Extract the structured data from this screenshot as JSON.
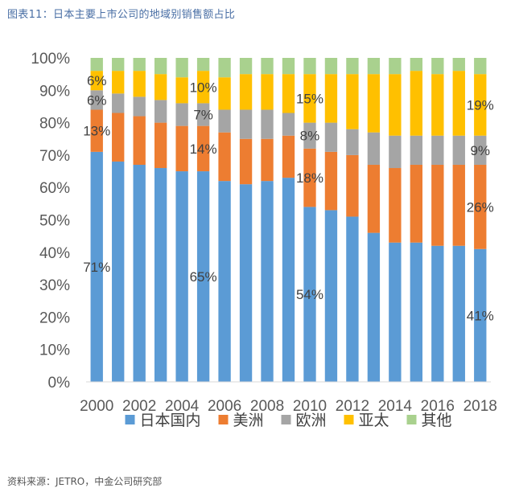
{
  "figure": {
    "title": "图表11：日本主要上市公司的地域别销售额占比",
    "source": "资料来源：JETRO，中金公司研究部"
  },
  "chart_data": {
    "type": "bar",
    "stacked": true,
    "percent": true,
    "categories": [
      "2000",
      "2001",
      "2002",
      "2003",
      "2004",
      "2005",
      "2006",
      "2007",
      "2008",
      "2009",
      "2010",
      "2011",
      "2012",
      "2013",
      "2014",
      "2015",
      "2016",
      "2017",
      "2018"
    ],
    "x_tick_labels": [
      "2000",
      "2002",
      "2004",
      "2006",
      "2008",
      "2010",
      "2012",
      "2014",
      "2016",
      "2018"
    ],
    "ylim": [
      0,
      100
    ],
    "y_ticks": [
      0,
      10,
      20,
      30,
      40,
      50,
      60,
      70,
      80,
      90,
      100
    ],
    "y_tick_format": "{v}%",
    "grid": false,
    "legend_position": "bottom",
    "series": [
      {
        "name": "日本国内",
        "color": "#5b9bd5",
        "values": [
          71,
          68,
          67,
          66,
          65,
          65,
          62,
          61,
          62,
          63,
          54,
          53,
          51,
          46,
          43,
          43,
          42,
          42,
          41
        ]
      },
      {
        "name": "美洲",
        "color": "#ed7d31",
        "values": [
          13,
          15,
          15,
          14,
          14,
          14,
          15,
          14,
          13,
          13,
          18,
          18,
          19,
          21,
          23,
          24,
          25,
          25,
          26
        ]
      },
      {
        "name": "欧洲",
        "color": "#a5a5a5",
        "values": [
          6,
          6,
          6,
          7,
          7,
          7,
          7,
          9,
          9,
          7,
          8,
          9,
          8,
          10,
          10,
          9,
          9,
          9,
          9
        ]
      },
      {
        "name": "亚太",
        "color": "#ffc000",
        "values": [
          6,
          7,
          8,
          8,
          8,
          10,
          10,
          11,
          11,
          12,
          15,
          15,
          17,
          18,
          19,
          20,
          19,
          20,
          19
        ]
      },
      {
        "name": "其他",
        "color": "#a9d18e",
        "values": [
          4,
          4,
          4,
          5,
          6,
          4,
          6,
          5,
          5,
          5,
          5,
          5,
          5,
          5,
          5,
          4,
          5,
          4,
          5
        ]
      }
    ],
    "data_labels": [
      {
        "series": 0,
        "category": "2000",
        "text": "71%"
      },
      {
        "series": 1,
        "category": "2000",
        "text": "13%"
      },
      {
        "series": 2,
        "category": "2000",
        "text": "6%"
      },
      {
        "series": 3,
        "category": "2000",
        "text": "6%"
      },
      {
        "series": 0,
        "category": "2005",
        "text": "65%"
      },
      {
        "series": 1,
        "category": "2005",
        "text": "14%"
      },
      {
        "series": 2,
        "category": "2005",
        "text": "7%"
      },
      {
        "series": 3,
        "category": "2005",
        "text": "10%"
      },
      {
        "series": 0,
        "category": "2010",
        "text": "54%"
      },
      {
        "series": 1,
        "category": "2010",
        "text": "18%"
      },
      {
        "series": 2,
        "category": "2010",
        "text": "8%"
      },
      {
        "series": 3,
        "category": "2010",
        "text": "15%"
      },
      {
        "series": 0,
        "category": "2018",
        "text": "41%"
      },
      {
        "series": 1,
        "category": "2018",
        "text": "26%"
      },
      {
        "series": 2,
        "category": "2018",
        "text": "9%"
      },
      {
        "series": 3,
        "category": "2018",
        "text": "19%"
      }
    ]
  }
}
